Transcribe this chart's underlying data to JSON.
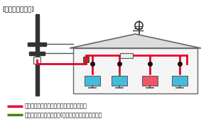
{
  "title": "[ホーム接続方式]",
  "legend1_color": "#e8002d",
  "legend1_text": "ケーブルテレビサービスが利用可能な配線",
  "legend2_color": "#3a8a00",
  "legend2_text": "ケーブルテレビの再送信(地上波放送）が見られます",
  "bg_color": "#ffffff",
  "line_color_red": "#e8002d",
  "line_color_green": "#3a8a00",
  "pole_color": "#333333",
  "roof_color": "#888888",
  "wall_color": "#f5f5f5",
  "tv_color": "#44bbdd",
  "tv_color2": "#ee5566"
}
